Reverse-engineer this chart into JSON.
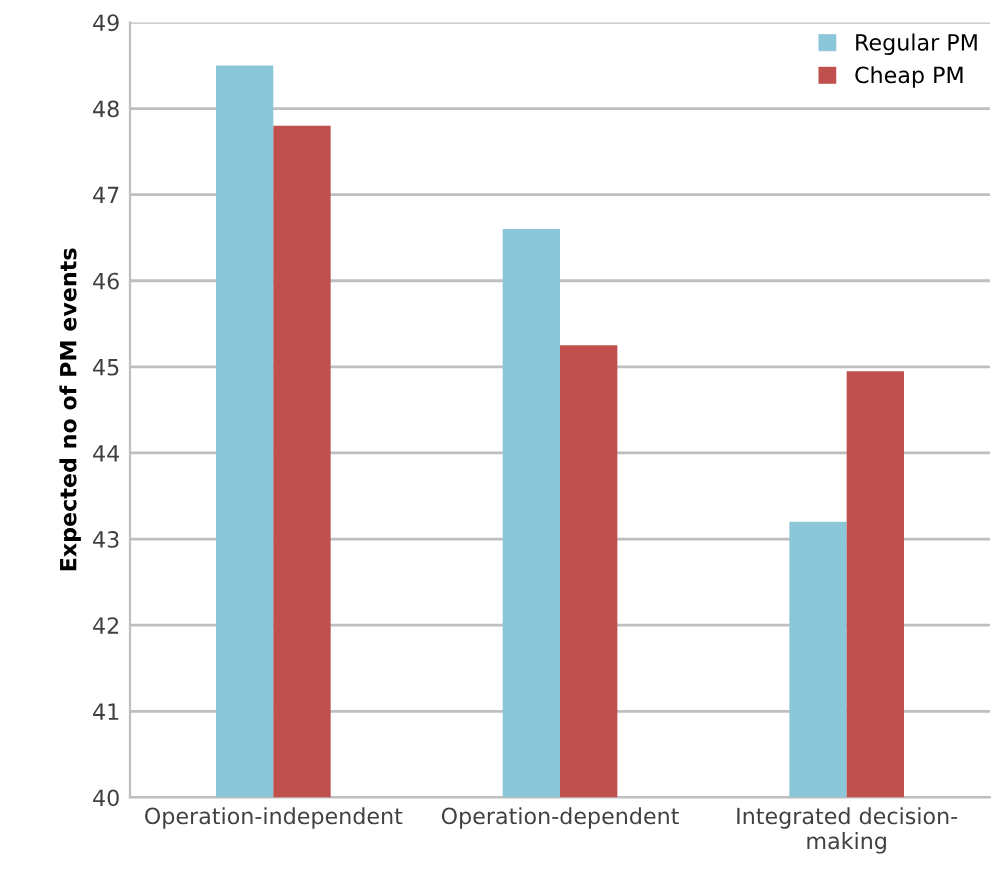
{
  "chart_data": {
    "type": "bar",
    "ylabel": "Expected no of PM events",
    "categories": [
      "Operation-independent",
      "Operation-dependent",
      "Integrated decision-\nmaking"
    ],
    "series": [
      {
        "name": "Regular PM",
        "color": "#8cc6d9",
        "values": [
          48.5,
          46.6,
          43.2
        ]
      },
      {
        "name": "Cheap PM",
        "color": "#c0504d",
        "values": [
          47.8,
          45.25,
          44.95
        ]
      }
    ],
    "ylim": [
      40,
      49
    ],
    "yticks": [
      40,
      41,
      42,
      43,
      44,
      45,
      46,
      47,
      48,
      49
    ],
    "grid": "y",
    "legend": "top right"
  }
}
